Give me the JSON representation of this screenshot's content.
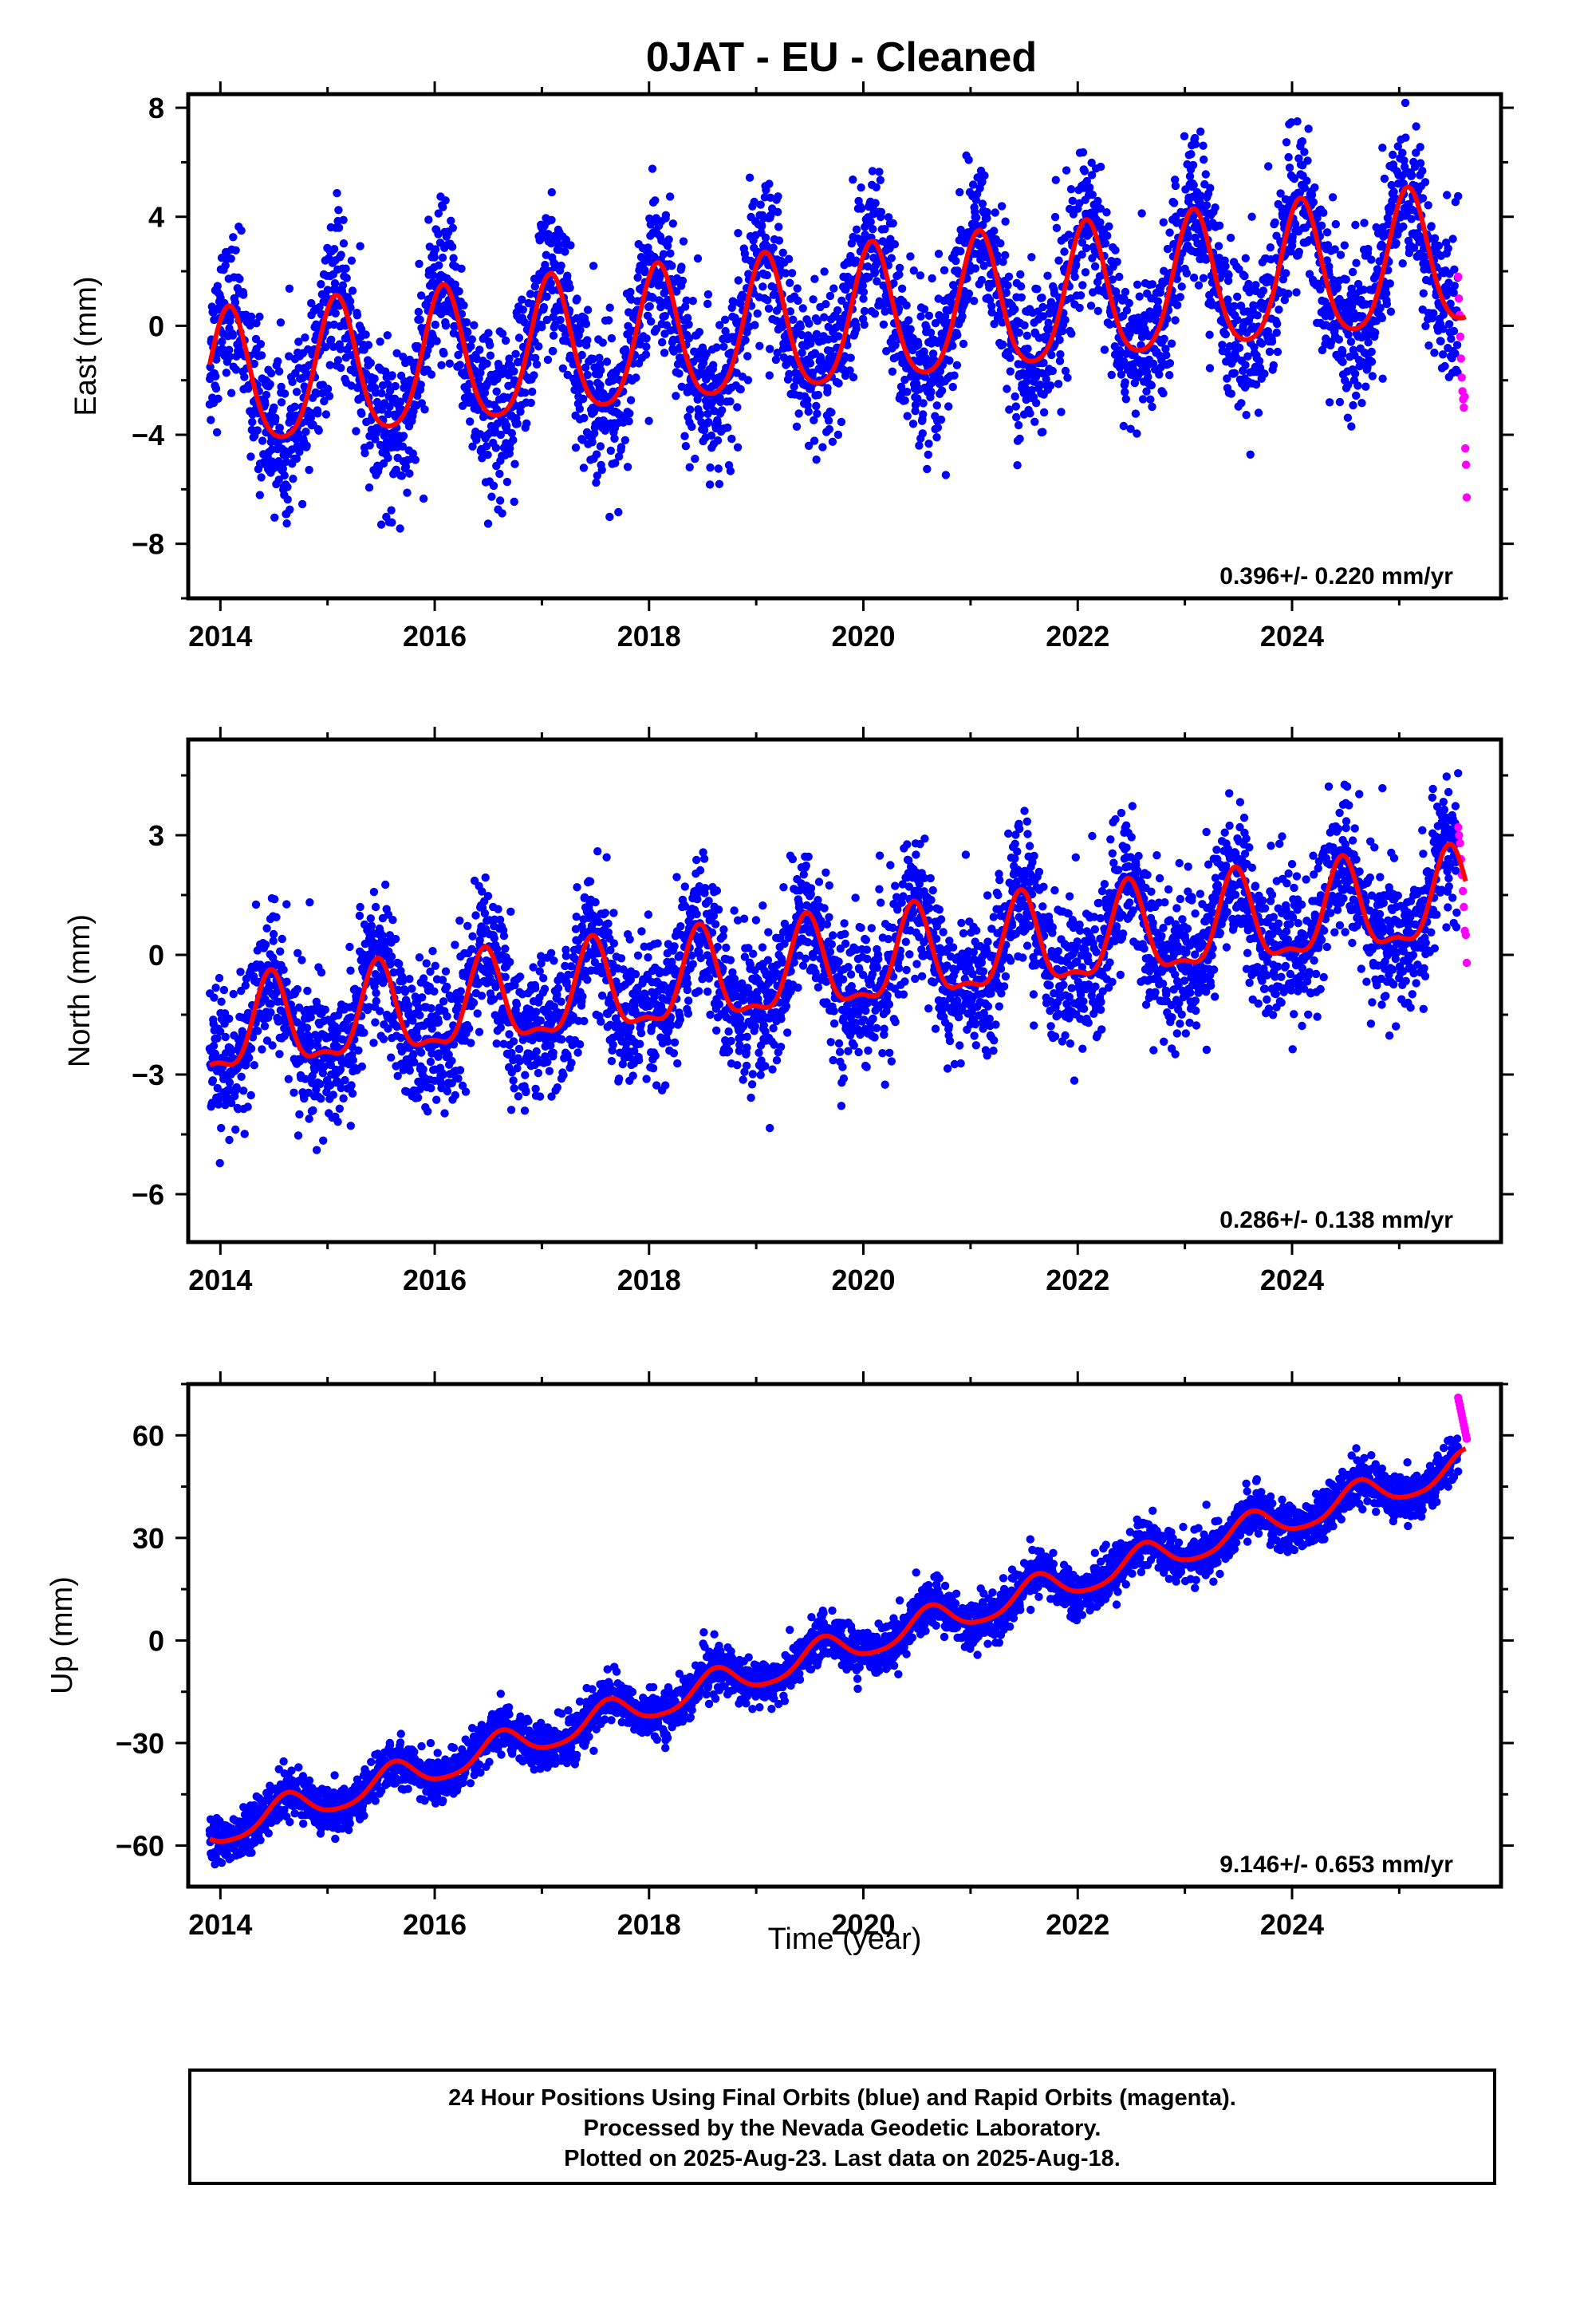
{
  "title": "0JAT  - EU - Cleaned",
  "x_axis_title": "Time (year)",
  "footer": {
    "line1": "24 Hour Positions Using Final Orbits (blue) and Rapid Orbits (magenta).",
    "line2": "Processed by the Nevada Geodetic Laboratory.",
    "line3": "Plotted on 2025-Aug-23. Last data on 2025-Aug-18."
  },
  "colors": {
    "final_orbits": "#0000ff",
    "rapid_orbits": "#ff00ff",
    "model_fit": "#ff0000",
    "axes": "#000000"
  },
  "chart_data": [
    {
      "type": "scatter",
      "component": "east",
      "ylabel": "East (mm)",
      "xlim": [
        2013.7,
        2025.95
      ],
      "ylim": [
        -10,
        8.5
      ],
      "xticks": [
        2014,
        2016,
        2018,
        2020,
        2022,
        2024
      ],
      "yticks": [
        -8,
        -4,
        0,
        4,
        8
      ],
      "rate_text": "0.396+/- 0.220 mm/yr",
      "grid": false,
      "series": [
        {
          "kind": "final_orbits_points",
          "x_range": [
            2013.9,
            2025.55
          ],
          "trend_mm_per_yr": 0.396,
          "offset_at_2014": -2.2,
          "annual_amplitude": 2.5,
          "annual_peak_year_fraction": 0.08,
          "semiannual_amplitude": 0.4,
          "scatter_sd": 1.4
        },
        {
          "kind": "rapid_orbits_points",
          "x_range": [
            2025.55,
            2025.63
          ],
          "y_values": [
            1.8,
            1.0,
            0.4,
            -0.4,
            -1.2,
            -1.9,
            -2.4,
            -2.7,
            -3.0,
            -2.6,
            -4.5,
            -5.1,
            -6.3
          ]
        },
        {
          "kind": "model_fit_line",
          "x_range": [
            2013.9,
            2025.62
          ]
        }
      ]
    },
    {
      "type": "scatter",
      "component": "north",
      "ylabel": "North (mm)",
      "xlim": [
        2013.7,
        2025.95
      ],
      "ylim": [
        -7.2,
        5.4
      ],
      "xticks": [
        2014,
        2016,
        2018,
        2020,
        2022,
        2024
      ],
      "yticks": [
        -6,
        -3,
        0,
        3
      ],
      "rate_text": "0.286+/- 0.138 mm/yr",
      "grid": false,
      "series": [
        {
          "kind": "final_orbits_points",
          "x_range": [
            2013.9,
            2025.55
          ],
          "trend_mm_per_yr": 0.286,
          "offset_at_2014": -2.0,
          "annual_amplitude": 1.1,
          "annual_peak_year_fraction": 0.47,
          "semiannual_amplitude": 0.4,
          "scatter_sd": 0.9
        },
        {
          "kind": "rapid_orbits_points",
          "x_range": [
            2025.55,
            2025.63
          ],
          "y_values": [
            3.2,
            3.0,
            2.8,
            2.4,
            2.0,
            1.6,
            1.2,
            0.6,
            0.5,
            -0.2
          ]
        },
        {
          "kind": "model_fit_line",
          "x_range": [
            2013.9,
            2025.62
          ]
        }
      ]
    },
    {
      "type": "scatter",
      "component": "up",
      "ylabel": "Up (mm)",
      "xlim": [
        2013.7,
        2025.95
      ],
      "ylim": [
        -72,
        75
      ],
      "xticks": [
        2014,
        2016,
        2018,
        2020,
        2022,
        2024
      ],
      "yticks": [
        -60,
        -30,
        0,
        30,
        60
      ],
      "rate_text": "9.146+/- 0.653 mm/yr",
      "grid": false,
      "series": [
        {
          "kind": "final_orbits_points",
          "x_range": [
            2013.9,
            2025.55
          ],
          "trend_mm_per_yr": 9.146,
          "offset_at_2014": -55.5,
          "annual_amplitude": 4.5,
          "annual_peak_year_fraction": 0.62,
          "semiannual_amplitude": 0.8,
          "scatter_sd": 3.4
        },
        {
          "kind": "rapid_orbits_points",
          "x_range": [
            2025.55,
            2025.63
          ],
          "y_values": [
            71,
            70,
            69,
            68,
            67,
            66,
            65,
            64,
            63,
            62,
            61,
            60,
            59
          ]
        },
        {
          "kind": "model_fit_line",
          "x_range": [
            2013.9,
            2025.62
          ]
        }
      ]
    }
  ]
}
